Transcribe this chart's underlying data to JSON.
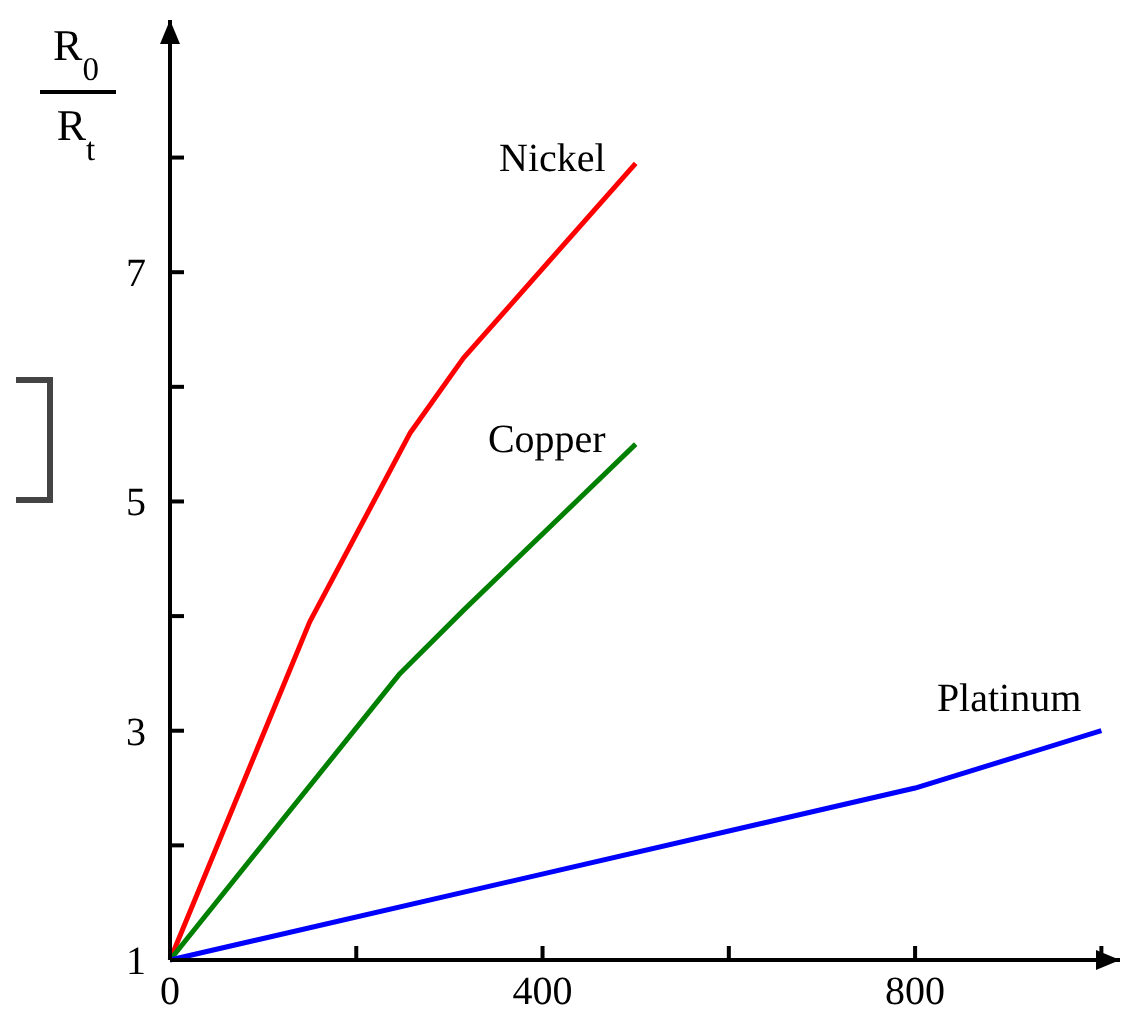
{
  "chart_data": {
    "type": "line",
    "ylabel": "R$_{0}$ R$_{t}$",
    "xlim": [
      0,
      1020
    ],
    "xticks": [
      0,
      {
        "value": 200,
        "label": null
      },
      400,
      {
        "value": 600,
        "label": null
      },
      800,
      {
        "value": 1000,
        "label": null
      }
    ],
    "ylim": [
      1,
      9.2
    ],
    "yticks": [
      1,
      {
        "value": 2,
        "label": null
      },
      3,
      {
        "value": 4,
        "label": null
      },
      5,
      {
        "value": 6,
        "label": null
      },
      7,
      {
        "value": 8,
        "label": null
      }
    ],
    "grid": false,
    "marker": "none",
    "line_style": "solid",
    "series": [
      {
        "name": "Nickel",
        "color": "#ff0000",
        "x": [
          0,
          150,
          258,
          315,
          500
        ],
        "values": [
          1,
          3.95,
          5.6,
          6.25,
          7.95
        ]
      },
      {
        "name": "Copper",
        "color": "#008000",
        "x": [
          0,
          247,
          315,
          500
        ],
        "values": [
          1,
          3.5,
          4.05,
          5.5
        ]
      },
      {
        "name": "Platinum",
        "color": "#0000ff",
        "x": [
          0,
          800,
          1000
        ],
        "values": [
          1,
          2.5,
          3
        ]
      }
    ]
  }
}
